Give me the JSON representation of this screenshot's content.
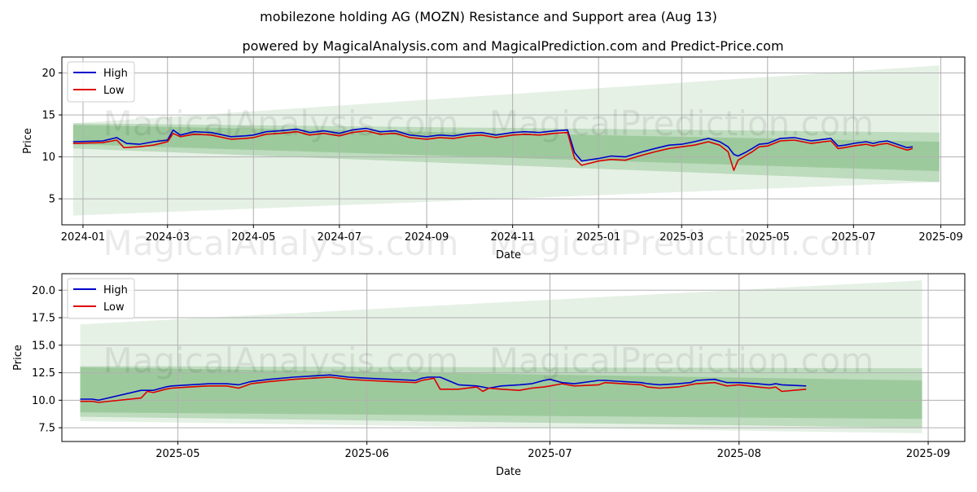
{
  "title": "mobilezone holding AG (MOZN) Resistance and Support area (Aug 13)",
  "subtitle": "powered by MagicalAnalysis.com and MagicalPrediction.com and Predict-Price.com",
  "watermarks": [
    "MagicalAnalysis.com",
    "MagicalPrediction.com"
  ],
  "colors": {
    "high": "#0000cc",
    "low": "#dd0000",
    "band": "#2e8b2e",
    "grid": "#b0b0b0"
  },
  "chart_data": [
    {
      "type": "line",
      "xlabel": "Date",
      "ylabel": "Price",
      "legend_position": "top-left",
      "grid": true,
      "xlim": [
        "2023-12-17",
        "2025-09-18"
      ],
      "ylim": [
        1.9,
        21.9
      ],
      "yticks": [
        5,
        10,
        15,
        20
      ],
      "ytick_labels": [
        "5",
        "10",
        "15",
        "20"
      ],
      "xticks": [
        "2024-01-01",
        "2024-03-01",
        "2024-05-01",
        "2024-07-01",
        "2024-09-01",
        "2024-11-01",
        "2025-01-01",
        "2025-03-01",
        "2025-05-01",
        "2025-07-01",
        "2025-09-01"
      ],
      "xtick_labels": [
        "2024-01",
        "2024-03",
        "2024-05",
        "2024-07",
        "2024-09",
        "2024-11",
        "2025-01",
        "2025-03",
        "2025-05",
        "2025-07",
        "2025-09"
      ],
      "bands": [
        {
          "x": [
            "2023-12-25",
            "2025-08-31"
          ],
          "upper": [
            14.0,
            20.9
          ],
          "lower": [
            3.0,
            7.0
          ],
          "opacity": 0.12
        },
        {
          "x": [
            "2023-12-25",
            "2025-08-31"
          ],
          "upper": [
            14.0,
            12.9
          ],
          "lower": [
            11.0,
            7.0
          ],
          "opacity": 0.22
        },
        {
          "x": [
            "2023-12-25",
            "2025-08-31"
          ],
          "upper": [
            13.8,
            11.8
          ],
          "lower": [
            11.5,
            8.3
          ],
          "opacity": 0.22
        }
      ],
      "series": [
        {
          "name": "High",
          "color": "#0000cc",
          "x": [
            "2023-12-25",
            "2024-01-15",
            "2024-01-25",
            "2024-02-01",
            "2024-02-10",
            "2024-02-20",
            "2024-03-01",
            "2024-03-05",
            "2024-03-10",
            "2024-03-20",
            "2024-04-01",
            "2024-04-15",
            "2024-04-25",
            "2024-05-01",
            "2024-05-10",
            "2024-05-20",
            "2024-06-01",
            "2024-06-10",
            "2024-06-20",
            "2024-07-01",
            "2024-07-10",
            "2024-07-20",
            "2024-07-30",
            "2024-08-10",
            "2024-08-20",
            "2024-09-01",
            "2024-09-10",
            "2024-09-20",
            "2024-10-01",
            "2024-10-10",
            "2024-10-20",
            "2024-11-01",
            "2024-11-10",
            "2024-11-20",
            "2024-12-01",
            "2024-12-10",
            "2024-12-15",
            "2024-12-20",
            "2025-01-01",
            "2025-01-10",
            "2025-01-20",
            "2025-02-01",
            "2025-02-10",
            "2025-02-20",
            "2025-03-01",
            "2025-03-10",
            "2025-03-20",
            "2025-03-28",
            "2025-04-03",
            "2025-04-07",
            "2025-04-10",
            "2025-04-15",
            "2025-04-20",
            "2025-04-25",
            "2025-05-01",
            "2025-05-10",
            "2025-05-20",
            "2025-06-01",
            "2025-06-10",
            "2025-06-15",
            "2025-06-20",
            "2025-06-25",
            "2025-07-01",
            "2025-07-10",
            "2025-07-15",
            "2025-07-20",
            "2025-07-25",
            "2025-08-01",
            "2025-08-08",
            "2025-08-12"
          ],
          "y": [
            11.8,
            11.9,
            12.3,
            11.6,
            11.5,
            11.8,
            12.0,
            13.2,
            12.6,
            13.0,
            12.9,
            12.4,
            12.5,
            12.6,
            13.0,
            13.1,
            13.3,
            12.9,
            13.1,
            12.8,
            13.2,
            13.4,
            13.0,
            13.1,
            12.6,
            12.4,
            12.6,
            12.5,
            12.8,
            12.9,
            12.6,
            12.9,
            13.0,
            12.9,
            13.1,
            13.2,
            10.5,
            9.5,
            9.8,
            10.1,
            10.0,
            10.6,
            11.0,
            11.4,
            11.5,
            11.8,
            12.2,
            11.8,
            11.2,
            10.3,
            10.1,
            10.5,
            11.0,
            11.5,
            11.6,
            12.2,
            12.3,
            11.9,
            12.1,
            12.2,
            11.3,
            11.4,
            11.6,
            11.8,
            11.6,
            11.8,
            11.9,
            11.5,
            11.1,
            11.2
          ]
        },
        {
          "name": "Low",
          "color": "#dd0000",
          "x": [
            "2023-12-25",
            "2024-01-15",
            "2024-01-25",
            "2024-01-30",
            "2024-02-10",
            "2024-02-20",
            "2024-03-01",
            "2024-03-05",
            "2024-03-10",
            "2024-03-20",
            "2024-04-01",
            "2024-04-15",
            "2024-04-25",
            "2024-05-01",
            "2024-05-10",
            "2024-05-20",
            "2024-06-01",
            "2024-06-10",
            "2024-06-20",
            "2024-07-01",
            "2024-07-10",
            "2024-07-20",
            "2024-07-30",
            "2024-08-10",
            "2024-08-20",
            "2024-09-01",
            "2024-09-10",
            "2024-09-20",
            "2024-10-01",
            "2024-10-10",
            "2024-10-20",
            "2024-11-01",
            "2024-11-10",
            "2024-11-20",
            "2024-12-01",
            "2024-12-10",
            "2024-12-15",
            "2024-12-20",
            "2025-01-01",
            "2025-01-10",
            "2025-01-20",
            "2025-02-01",
            "2025-02-10",
            "2025-02-20",
            "2025-03-01",
            "2025-03-10",
            "2025-03-20",
            "2025-03-28",
            "2025-04-03",
            "2025-04-07",
            "2025-04-10",
            "2025-04-15",
            "2025-04-20",
            "2025-04-25",
            "2025-05-01",
            "2025-05-10",
            "2025-05-20",
            "2025-06-01",
            "2025-06-10",
            "2025-06-15",
            "2025-06-20",
            "2025-06-25",
            "2025-07-01",
            "2025-07-10",
            "2025-07-15",
            "2025-07-20",
            "2025-07-25",
            "2025-08-01",
            "2025-08-08",
            "2025-08-12"
          ],
          "y": [
            11.6,
            11.7,
            12.0,
            11.1,
            11.2,
            11.4,
            11.8,
            12.8,
            12.4,
            12.7,
            12.6,
            12.1,
            12.2,
            12.3,
            12.7,
            12.8,
            13.0,
            12.6,
            12.8,
            12.5,
            12.9,
            13.1,
            12.7,
            12.8,
            12.3,
            12.1,
            12.3,
            12.2,
            12.5,
            12.6,
            12.3,
            12.6,
            12.7,
            12.6,
            12.8,
            12.9,
            9.8,
            9.0,
            9.5,
            9.7,
            9.6,
            10.2,
            10.6,
            11.0,
            11.2,
            11.4,
            11.8,
            11.4,
            10.6,
            8.4,
            9.6,
            10.1,
            10.6,
            11.2,
            11.3,
            11.9,
            12.0,
            11.6,
            11.8,
            11.9,
            11.0,
            11.1,
            11.3,
            11.5,
            11.3,
            11.5,
            11.6,
            11.2,
            10.8,
            11.0
          ]
        }
      ]
    },
    {
      "type": "line",
      "xlabel": "Date",
      "ylabel": "Price",
      "legend_position": "top-left",
      "grid": true,
      "xlim": [
        "2025-04-12",
        "2025-09-07"
      ],
      "ylim": [
        6.25,
        21.5
      ],
      "yticks": [
        7.5,
        10.0,
        12.5,
        15.0,
        17.5,
        20.0
      ],
      "ytick_labels": [
        "7.5",
        "10.0",
        "12.5",
        "15.0",
        "17.5",
        "20.0"
      ],
      "xticks": [
        "2025-05-01",
        "2025-06-01",
        "2025-07-01",
        "2025-08-01",
        "2025-09-01"
      ],
      "xtick_labels": [
        "2025-05",
        "2025-06",
        "2025-07",
        "2025-08",
        "2025-09"
      ],
      "bands": [
        {
          "x": [
            "2025-04-15",
            "2025-08-31"
          ],
          "upper": [
            16.9,
            20.9
          ],
          "lower": [
            8.1,
            7.0
          ],
          "opacity": 0.12
        },
        {
          "x": [
            "2025-04-15",
            "2025-08-31"
          ],
          "upper": [
            13.1,
            12.9
          ],
          "lower": [
            8.5,
            7.5
          ],
          "opacity": 0.22
        },
        {
          "x": [
            "2025-04-15",
            "2025-08-31"
          ],
          "upper": [
            13.0,
            11.8
          ],
          "lower": [
            8.9,
            8.3
          ],
          "opacity": 0.22
        }
      ],
      "series": [
        {
          "name": "High",
          "color": "#0000cc",
          "x": [
            "2025-04-15",
            "2025-04-17",
            "2025-04-18",
            "2025-04-25",
            "2025-04-27",
            "2025-04-29",
            "2025-04-30",
            "2025-05-03",
            "2025-05-06",
            "2025-05-09",
            "2025-05-11",
            "2025-05-13",
            "2025-05-16",
            "2025-05-20",
            "2025-05-23",
            "2025-05-26",
            "2025-05-29",
            "2025-06-01",
            "2025-06-05",
            "2025-06-09",
            "2025-06-10",
            "2025-06-11",
            "2025-06-13",
            "2025-06-16",
            "2025-06-19",
            "2025-06-21",
            "2025-06-23",
            "2025-06-26",
            "2025-06-28",
            "2025-06-30",
            "2025-07-01",
            "2025-07-03",
            "2025-07-05",
            "2025-07-09",
            "2025-07-10",
            "2025-07-13",
            "2025-07-16",
            "2025-07-17",
            "2025-07-19",
            "2025-07-22",
            "2025-07-24",
            "2025-07-25",
            "2025-07-28",
            "2025-07-30",
            "2025-08-01",
            "2025-08-04",
            "2025-08-06",
            "2025-08-07",
            "2025-08-08",
            "2025-08-12"
          ],
          "y": [
            10.1,
            10.1,
            10.0,
            10.9,
            10.9,
            11.2,
            11.3,
            11.4,
            11.5,
            11.5,
            11.4,
            11.7,
            11.9,
            12.1,
            12.2,
            12.3,
            12.1,
            12.0,
            11.9,
            11.8,
            12.0,
            12.1,
            12.1,
            11.4,
            11.3,
            11.1,
            11.3,
            11.4,
            11.5,
            11.8,
            11.9,
            11.6,
            11.5,
            11.8,
            11.8,
            11.7,
            11.6,
            11.5,
            11.4,
            11.5,
            11.6,
            11.8,
            11.9,
            11.6,
            11.6,
            11.5,
            11.4,
            11.5,
            11.4,
            11.3
          ]
        },
        {
          "name": "Low",
          "color": "#dd0000",
          "x": [
            "2025-04-15",
            "2025-04-17",
            "2025-04-18",
            "2025-04-25",
            "2025-04-26",
            "2025-04-27",
            "2025-04-29",
            "2025-04-30",
            "2025-05-03",
            "2025-05-06",
            "2025-05-09",
            "2025-05-11",
            "2025-05-13",
            "2025-05-16",
            "2025-05-20",
            "2025-05-23",
            "2025-05-26",
            "2025-05-29",
            "2025-06-01",
            "2025-06-05",
            "2025-06-09",
            "2025-06-10",
            "2025-06-11",
            "2025-06-12",
            "2025-06-13",
            "2025-06-16",
            "2025-06-19",
            "2025-06-20",
            "2025-06-21",
            "2025-06-23",
            "2025-06-26",
            "2025-06-28",
            "2025-06-30",
            "2025-07-01",
            "2025-07-03",
            "2025-07-05",
            "2025-07-09",
            "2025-07-10",
            "2025-07-13",
            "2025-07-16",
            "2025-07-17",
            "2025-07-19",
            "2025-07-22",
            "2025-07-24",
            "2025-07-25",
            "2025-07-28",
            "2025-07-30",
            "2025-08-01",
            "2025-08-04",
            "2025-08-06",
            "2025-08-07",
            "2025-08-08",
            "2025-08-12"
          ],
          "y": [
            9.9,
            9.9,
            9.8,
            10.2,
            10.8,
            10.7,
            11.0,
            11.1,
            11.2,
            11.3,
            11.3,
            11.1,
            11.5,
            11.7,
            11.9,
            12.0,
            12.1,
            11.9,
            11.8,
            11.7,
            11.6,
            11.8,
            11.9,
            12.0,
            11.0,
            11.0,
            11.2,
            10.8,
            11.1,
            11.0,
            10.9,
            11.1,
            11.2,
            11.3,
            11.5,
            11.3,
            11.4,
            11.6,
            11.5,
            11.4,
            11.2,
            11.1,
            11.2,
            11.4,
            11.5,
            11.6,
            11.3,
            11.4,
            11.2,
            11.1,
            11.2,
            10.8,
            11.0
          ]
        }
      ]
    }
  ]
}
